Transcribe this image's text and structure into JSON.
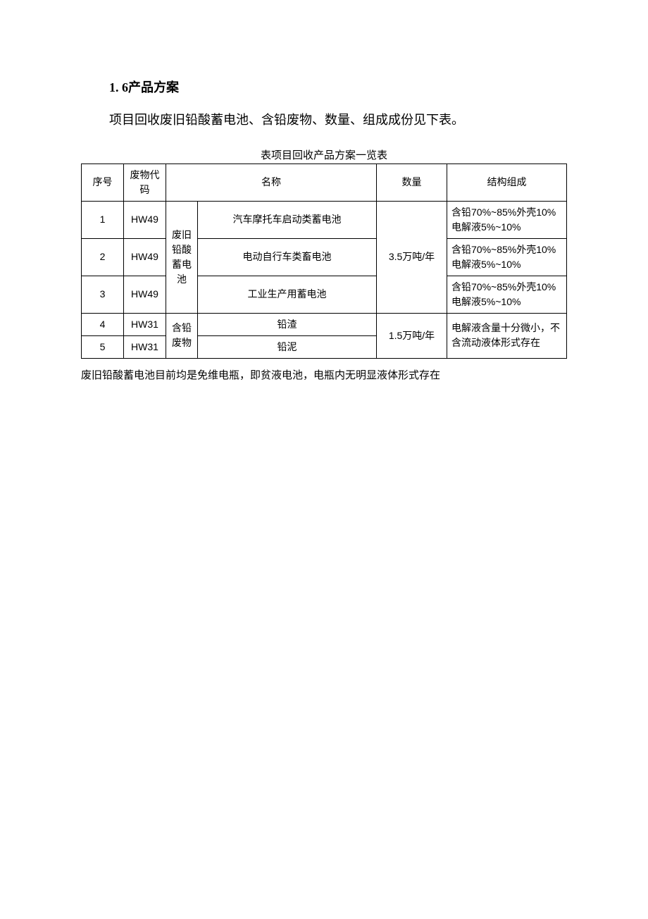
{
  "heading": "1. 6产品方案",
  "intro": "项目回收废旧铅酸蓄电池、含铅废物、数量、组成成份见下表。",
  "table_caption": "表项目回收产品方案一览表",
  "headers": {
    "seq": "序号",
    "code": "废物代码",
    "name": "名称",
    "qty": "数量",
    "comp": "结构组成"
  },
  "category1": "废旧铅酸蓄电池",
  "category2": "含铅废物",
  "qty1": "3.5万吨/年",
  "qty2": "1.5万吨/年",
  "comp_a": "含铅70%~85%外壳10%电解液5%~10%",
  "comp_b": "电解液含量十分微小，不含流动液体形式存在",
  "rows": {
    "r1": {
      "seq": "1",
      "code": "HW49",
      "name": "汽车摩托车启动类蓄电池"
    },
    "r2": {
      "seq": "2",
      "code": "HW49",
      "name": "电动自行车类畜电池"
    },
    "r3": {
      "seq": "3",
      "code": "HW49",
      "name": "工业生产用蓄电池"
    },
    "r4": {
      "seq": "4",
      "code": "HW31",
      "name": "铅渣"
    },
    "r5": {
      "seq": "5",
      "code": "HW31",
      "name": "铅泥"
    }
  },
  "footnote": "废旧铅酸蓄电池目前均是免维电瓶，即贫液电池，电瓶内无明显液体形式存在",
  "style": {
    "page_bg": "#ffffff",
    "text_color": "#000000",
    "border_color": "#000000",
    "heading_fontsize": 18,
    "body_fontsize": 18,
    "table_fontsize": 14,
    "caption_fontsize": 15
  }
}
